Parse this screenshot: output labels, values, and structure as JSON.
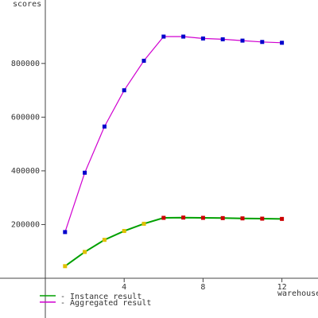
{
  "chart_data": {
    "type": "line",
    "xlabel": "warehouses",
    "ylabel": "scores",
    "xlim": [
      0,
      12.8
    ],
    "ylim": [
      0,
      1060000
    ],
    "x_ticks": [
      4,
      8,
      12
    ],
    "y_ticks": [
      200000,
      400000,
      600000,
      800000
    ],
    "x_tick_labels": [
      "4",
      "8",
      "12"
    ],
    "y_tick_labels": [
      "200000",
      "400000",
      "600000",
      "800000"
    ],
    "grid": false,
    "legend_position": "bottom-left",
    "series": [
      {
        "name": "Instance result",
        "color": "#00a000",
        "marker_colors": [
          "#e0c000",
          "#e0c000",
          "#e0c000",
          "#e0c000",
          "#e0c000",
          "#cc0000",
          "#cc0000",
          "#cc0000",
          "#cc0000",
          "#cc0000",
          "#cc0000",
          "#cc0000"
        ],
        "x": [
          1,
          2,
          3,
          4,
          5,
          6,
          7,
          8,
          9,
          10,
          11,
          12
        ],
        "values": [
          45000,
          98000,
          143000,
          176000,
          203000,
          225000,
          226000,
          225000,
          224000,
          223000,
          222000,
          221000
        ]
      },
      {
        "name": "Aggregated result",
        "color": "#d000d0",
        "marker_color": "#0000cc",
        "x": [
          1,
          2,
          3,
          4,
          5,
          6,
          7,
          8,
          9,
          10,
          11,
          12
        ],
        "values": [
          172000,
          393000,
          565000,
          700000,
          810000,
          900000,
          900000,
          893000,
          890000,
          885000,
          880000,
          877000
        ]
      }
    ]
  }
}
